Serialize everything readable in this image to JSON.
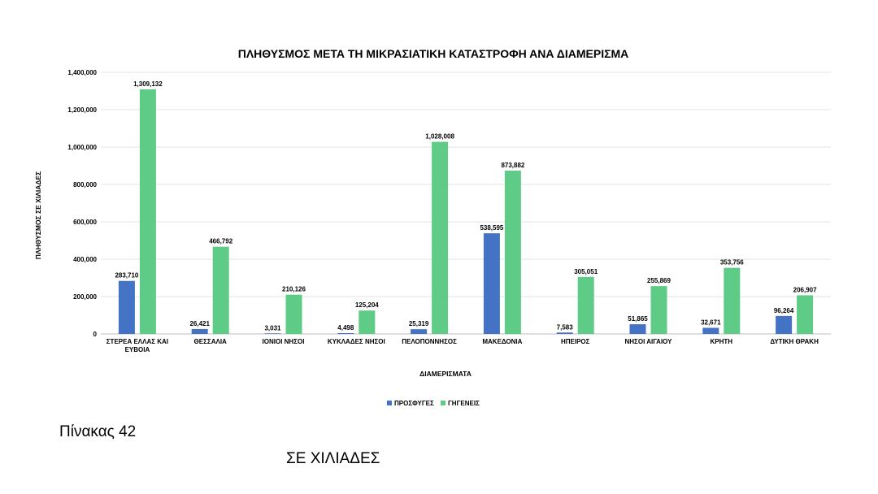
{
  "chart_data": {
    "type": "bar",
    "title": "ΠΛΗΘΥΣΜΟΣ ΜΕΤΑ ΤΗ ΜΙΚΡΑΣΙΑΤΙΚΗ ΚΑΤΑΣΤΡΟΦΗ ΑΝΑ ΔΙΑΜΕΡΙΣΜΑ",
    "xlabel": "ΔΙΑΜΕΡΙΣΜΑΤΑ",
    "ylabel": "ΠΛΗΘΥΣΜΟΣ ΣΕ ΧΙΛΙΑΔΕΣ",
    "ylim": [
      0,
      1400000
    ],
    "yticks": [
      0,
      200000,
      400000,
      600000,
      800000,
      1000000,
      1200000,
      1400000
    ],
    "ytick_labels": [
      "0",
      "200,000",
      "400,000",
      "600,000",
      "800,000",
      "1,000,000",
      "1,200,000",
      "1,400,000"
    ],
    "grid": true,
    "legend_position": "bottom",
    "categories": [
      [
        "ΣΤΕΡΕΑ ΕΛΛΑΣ ΚΑΙ",
        "ΕΥΒΟΙΑ"
      ],
      [
        "ΘΕΣΣΑΛΙΑ"
      ],
      [
        "ΙΟΝΙΟΙ ΝΗΣΟΙ"
      ],
      [
        "ΚΥΚΛΑΔΕΣ ΝΗΣΟΙ"
      ],
      [
        "ΠΕΛΟΠΟΝΝΗΣΟΣ"
      ],
      [
        "ΜΑΚΕΔΟΝΙΑ"
      ],
      [
        "ΗΠΕΙΡΟΣ"
      ],
      [
        "ΝΗΣΟΙ ΑΙΓΑΙΟΥ"
      ],
      [
        "ΚΡΗΤΗ"
      ],
      [
        "ΔΥΤΙΚΗ ΘΡΑΚΗ"
      ]
    ],
    "series": [
      {
        "name": "ΠΡΟΣΦΥΓΕΣ",
        "color": "#4472c4",
        "values": [
          283710,
          26421,
          3031,
          4498,
          25319,
          538595,
          7583,
          51865,
          32671,
          96264
        ],
        "labels": [
          "283,710",
          "26,421",
          "3,031",
          "4,498",
          "25,319",
          "538,595",
          "7,583",
          "51,865",
          "32,671",
          "96,264"
        ]
      },
      {
        "name": "ΓΗΓΕΝΕΙΣ",
        "color": "#5ecb86",
        "values": [
          1309132,
          466792,
          210126,
          125204,
          1028008,
          873882,
          305051,
          255869,
          353756,
          206907
        ],
        "labels": [
          "1,309,132",
          "466,792",
          "210,126",
          "125,204",
          "1,028,008",
          "873,882",
          "305,051",
          "255,869",
          "353,756",
          "206,907"
        ]
      }
    ]
  },
  "caption": "Πίνακας 42",
  "subcaption": "ΣΕ ΧΙΛΙΑΔΕΣ"
}
